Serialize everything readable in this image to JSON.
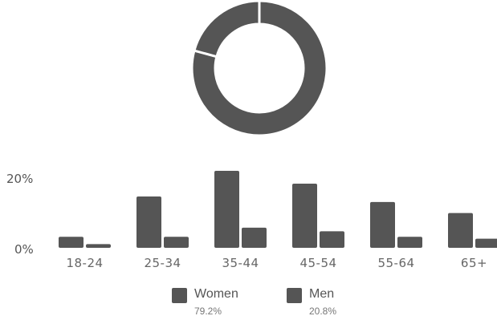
{
  "chart_data": [
    {
      "type": "pie",
      "variant": "donut",
      "slices": [
        {
          "name": "Women",
          "value": 79.2,
          "color": "#555555"
        },
        {
          "name": "Men",
          "value": 20.8,
          "color": "#555555"
        }
      ]
    },
    {
      "type": "bar",
      "categories": [
        "18-24",
        "25-34",
        "35-44",
        "45-54",
        "55-64",
        "65+"
      ],
      "series": [
        {
          "name": "Women",
          "values": [
            3,
            14,
            21,
            17.5,
            12.5,
            9.5
          ],
          "color": "#555555"
        },
        {
          "name": "Men",
          "values": [
            1,
            3,
            5.5,
            4.5,
            3,
            2.5
          ],
          "color": "#555555"
        }
      ],
      "yticks": [
        "0%",
        "20%"
      ],
      "ylim": [
        0,
        21
      ],
      "legend_position": "bottom",
      "grid": false
    }
  ],
  "legend": {
    "items": [
      {
        "name": "Women",
        "pct": "79.2%",
        "color": "#555555"
      },
      {
        "name": "Men",
        "pct": "20.8%",
        "color": "#555555"
      }
    ]
  }
}
